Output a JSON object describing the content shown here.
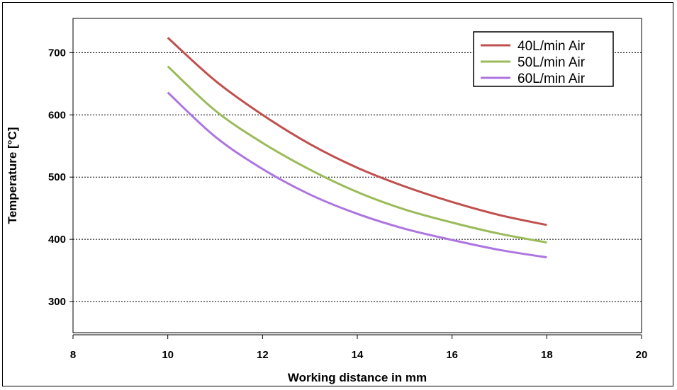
{
  "chart_data": {
    "type": "line",
    "title": "",
    "xlabel": "Working distance in mm",
    "ylabel": "Temperature [°C]",
    "xlim": [
      8,
      20
    ],
    "ylim": [
      250,
      755
    ],
    "xticks": [
      8,
      10,
      12,
      14,
      16,
      18,
      20
    ],
    "yticks": [
      300,
      400,
      500,
      600,
      700
    ],
    "grid": "horizontal-dotted",
    "legend_position": "top-right",
    "x": [
      10,
      11,
      12,
      13,
      14,
      15,
      16,
      17,
      18
    ],
    "series": [
      {
        "name": "40L/min Air",
        "color": "#c0504d",
        "values": [
          724,
          655,
          600,
          553,
          515,
          485,
          460,
          439,
          423
        ]
      },
      {
        "name": "50L/min Air",
        "color": "#9bbb59",
        "values": [
          678,
          607,
          555,
          512,
          476,
          448,
          427,
          409,
          395
        ]
      },
      {
        "name": "60L/min Air",
        "color": "#ad75e0",
        "values": [
          636,
          565,
          513,
          472,
          441,
          417,
          399,
          383,
          371
        ]
      }
    ]
  }
}
